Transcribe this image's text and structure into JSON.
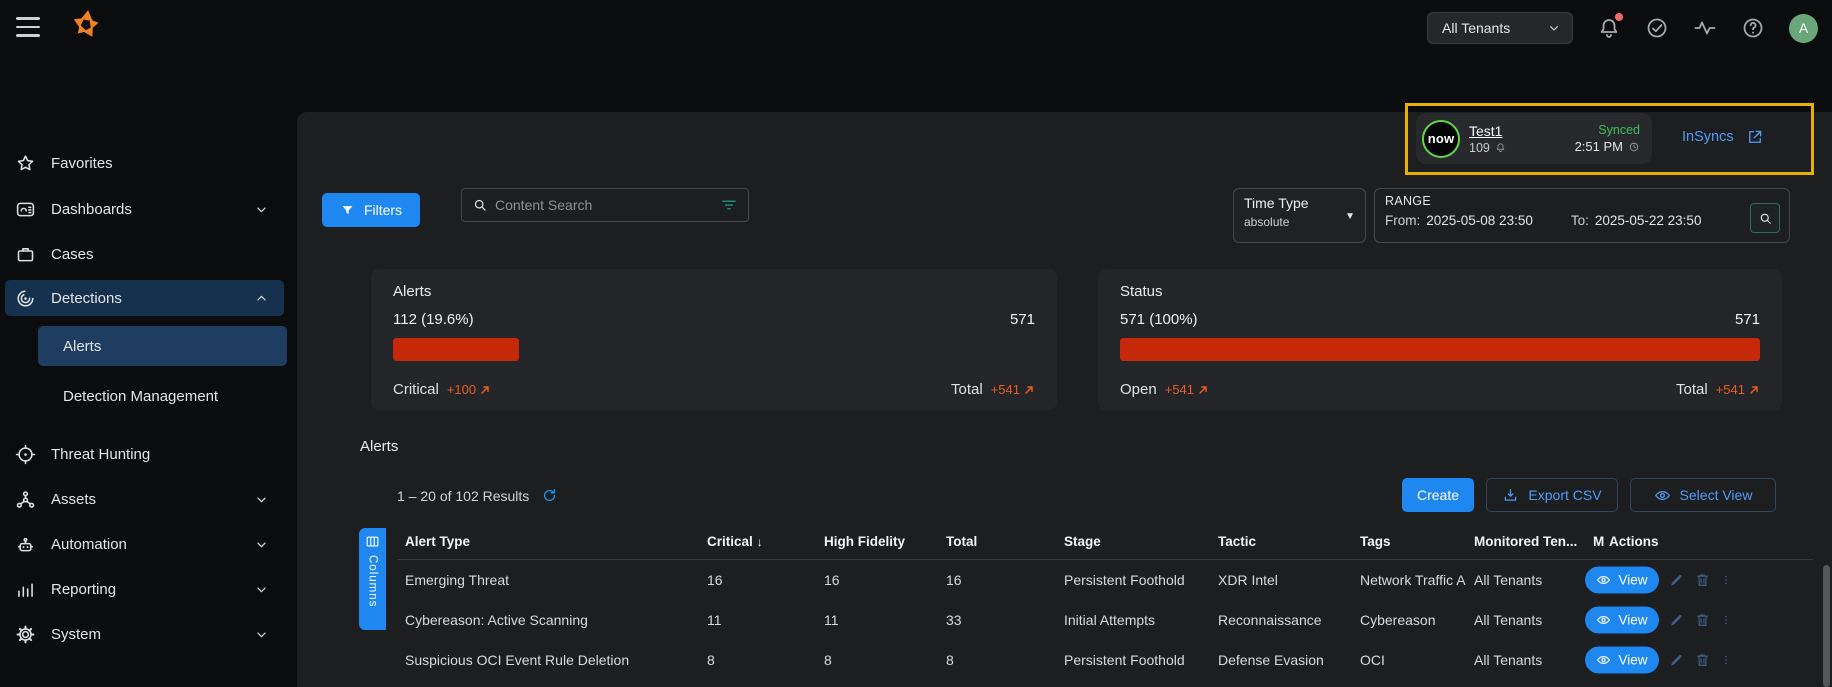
{
  "topbar": {
    "tenant_selector": "All Tenants",
    "avatar_letter": "A"
  },
  "sidebar": {
    "items": [
      {
        "label": "Favorites",
        "icon": "star"
      },
      {
        "label": "Dashboards",
        "icon": "dashboards",
        "chevron": "down"
      },
      {
        "label": "Cases",
        "icon": "cases"
      },
      {
        "label": "Detections",
        "icon": "detections",
        "chevron": "up",
        "state": "expanded"
      },
      {
        "label": "Alerts",
        "type": "sub",
        "state": "selected"
      },
      {
        "label": "Detection Management",
        "type": "sub"
      },
      {
        "label": "Threat Hunting",
        "icon": "threat-hunting"
      },
      {
        "label": "Assets",
        "icon": "assets",
        "chevron": "down"
      },
      {
        "label": "Automation",
        "icon": "automation",
        "chevron": "down"
      },
      {
        "label": "Reporting",
        "icon": "reporting",
        "chevron": "down"
      },
      {
        "label": "System",
        "icon": "system",
        "chevron": "down"
      }
    ]
  },
  "sync_widget": {
    "logo_text": "now",
    "name": "Test1",
    "count": "109",
    "status": "Synced",
    "time": "2:51 PM",
    "link_label": "InSyncs"
  },
  "filters_bar": {
    "filters_button": "Filters",
    "search_placeholder": "Content Search",
    "time_type_label": "Time Type",
    "time_type_value": "absolute",
    "range_label": "RANGE",
    "from_label": "From:",
    "from_value": "2025-05-08 23:50",
    "to_label": "To:",
    "to_value": "2025-05-22 23:50"
  },
  "cards": [
    {
      "title": "Alerts",
      "left_value": "112 (19.6%)",
      "right_value": "571",
      "bar_pct": 19.6,
      "footer_left_label": "Critical",
      "footer_left_delta": "+100",
      "footer_right_label": "Total",
      "footer_right_delta": "+541"
    },
    {
      "title": "Status",
      "left_value": "571 (100%)",
      "right_value": "571",
      "bar_pct": 100,
      "footer_left_label": "Open",
      "footer_left_delta": "+541",
      "footer_right_label": "Total",
      "footer_right_delta": "+541"
    }
  ],
  "alerts_section": {
    "title": "Alerts",
    "results_text": "1 – 20 of 102 Results",
    "create_button": "Create",
    "export_button": "Export CSV",
    "select_view_button": "Select View",
    "columns_button": "Columns"
  },
  "table": {
    "columns": [
      {
        "label": "Alert Type"
      },
      {
        "label": "Critical",
        "sort": "desc"
      },
      {
        "label": "High Fidelity"
      },
      {
        "label": "Total"
      },
      {
        "label": "Stage"
      },
      {
        "label": "Tactic"
      },
      {
        "label": "Tags"
      },
      {
        "label": "Monitored Ten..."
      },
      {
        "label": "M",
        "clipped": true
      },
      {
        "label": "Actions"
      }
    ],
    "view_button": "View",
    "rows": [
      {
        "alert_type": "Emerging Threat",
        "critical": "16",
        "high_fidelity": "16",
        "total": "16",
        "stage": "Persistent Foothold",
        "tactic": "XDR Intel",
        "tags": "Network Traffic A",
        "monitored_tenants": "All Tenants"
      },
      {
        "alert_type": "Cybereason: Active Scanning",
        "critical": "11",
        "high_fidelity": "11",
        "total": "33",
        "stage": "Initial Attempts",
        "tactic": "Reconnaissance",
        "tags": "Cybereason",
        "monitored_tenants": "All Tenants"
      },
      {
        "alert_type": "Suspicious OCI Event Rule Deletion",
        "critical": "8",
        "high_fidelity": "8",
        "total": "8",
        "stage": "Persistent Foothold",
        "tactic": "Defense Evasion",
        "tags": "OCI",
        "monitored_tenants": "All Tenants"
      }
    ]
  },
  "colors": {
    "accent_blue": "#1e87f0",
    "bar_red": "#c5290a",
    "delta_orange": "#e85c20",
    "synced_green": "#3fbf5a",
    "highlight_yellow": "#e9b000",
    "teal_filter_icon": "#16a58c",
    "avatar_green": "#69a77a"
  }
}
